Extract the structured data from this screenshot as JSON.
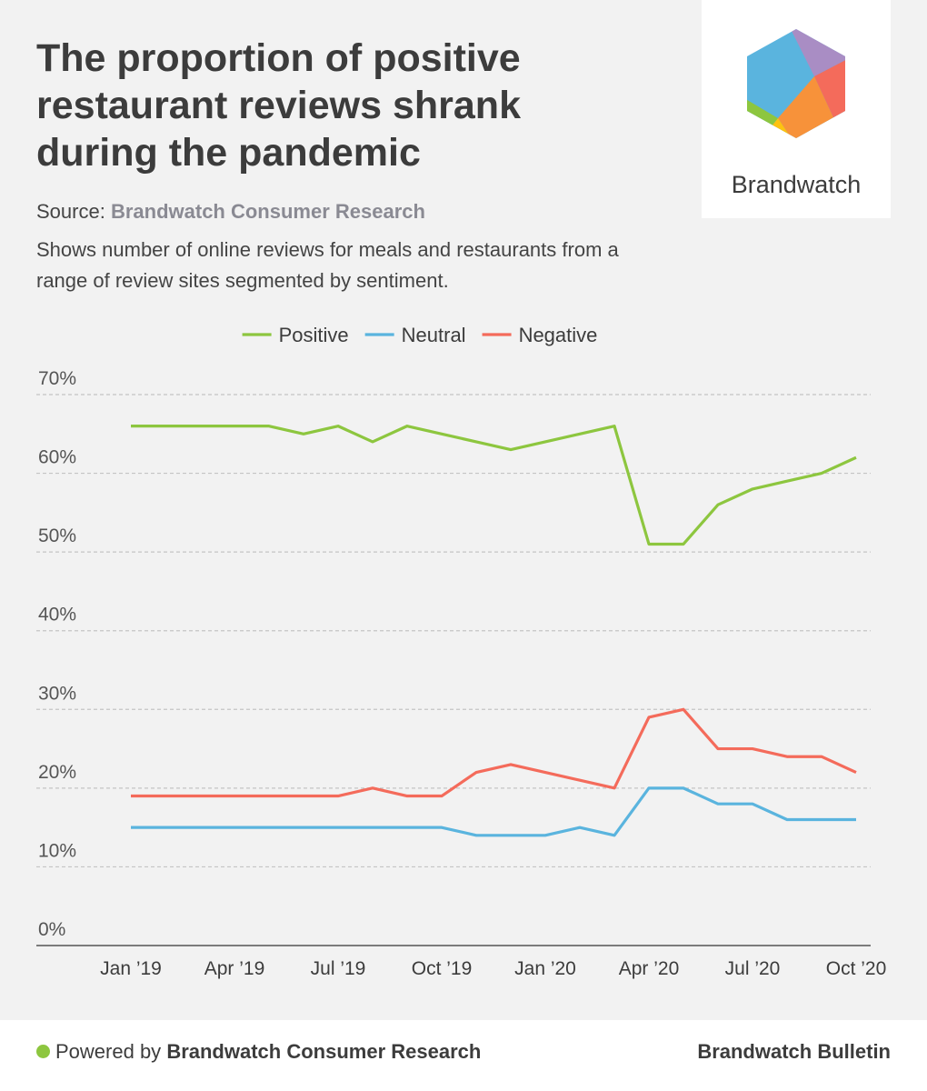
{
  "header": {
    "title": "The proportion of positive restaurant reviews shrank during the pandemic",
    "source_label": "Source:",
    "source_name": "Brandwatch Consumer Research",
    "subtitle": "Shows number of online reviews for meals and restaurants from a range of review sites segmented by sentiment."
  },
  "logo": {
    "text": "Brandwatch"
  },
  "chart_data": {
    "type": "line",
    "categories": [
      "Jan ’19",
      null,
      null,
      "Apr ’19",
      null,
      null,
      "Jul ’19",
      null,
      null,
      "Oct ’19",
      null,
      null,
      "Jan ’20",
      null,
      null,
      "Apr ’20",
      null,
      null,
      "Jul ’20",
      null,
      null,
      "Oct ’20"
    ],
    "series": [
      {
        "name": "Positive",
        "color": "#8dc63f",
        "values": [
          66,
          66,
          66,
          66,
          66,
          65,
          66,
          64,
          66,
          65,
          64,
          63,
          64,
          65,
          66,
          51,
          51,
          56,
          58,
          59,
          60,
          62
        ]
      },
      {
        "name": "Neutral",
        "color": "#5ab4de",
        "values": [
          15,
          15,
          15,
          15,
          15,
          15,
          15,
          15,
          15,
          15,
          14,
          14,
          14,
          15,
          14,
          20,
          20,
          18,
          18,
          16,
          16,
          16
        ]
      },
      {
        "name": "Negative",
        "color": "#f46b5b",
        "values": [
          19,
          19,
          19,
          19,
          19,
          19,
          19,
          20,
          19,
          19,
          22,
          23,
          22,
          21,
          20,
          29,
          30,
          25,
          25,
          24,
          24,
          22
        ]
      }
    ],
    "ylim": [
      0,
      70
    ],
    "yticks": [
      {
        "value": 0,
        "label": "0%"
      },
      {
        "value": 10,
        "label": "10%"
      },
      {
        "value": 20,
        "label": "20%"
      },
      {
        "value": 30,
        "label": "30%"
      },
      {
        "value": 40,
        "label": "40%"
      },
      {
        "value": 50,
        "label": "50%"
      },
      {
        "value": 60,
        "label": "60%"
      },
      {
        "value": 70,
        "label": "70%"
      }
    ],
    "grid": true,
    "legend": "top"
  },
  "footer": {
    "powered_by": "Powered by",
    "powered_name": "Brandwatch Consumer Research",
    "right": "Brandwatch Bulletin"
  }
}
